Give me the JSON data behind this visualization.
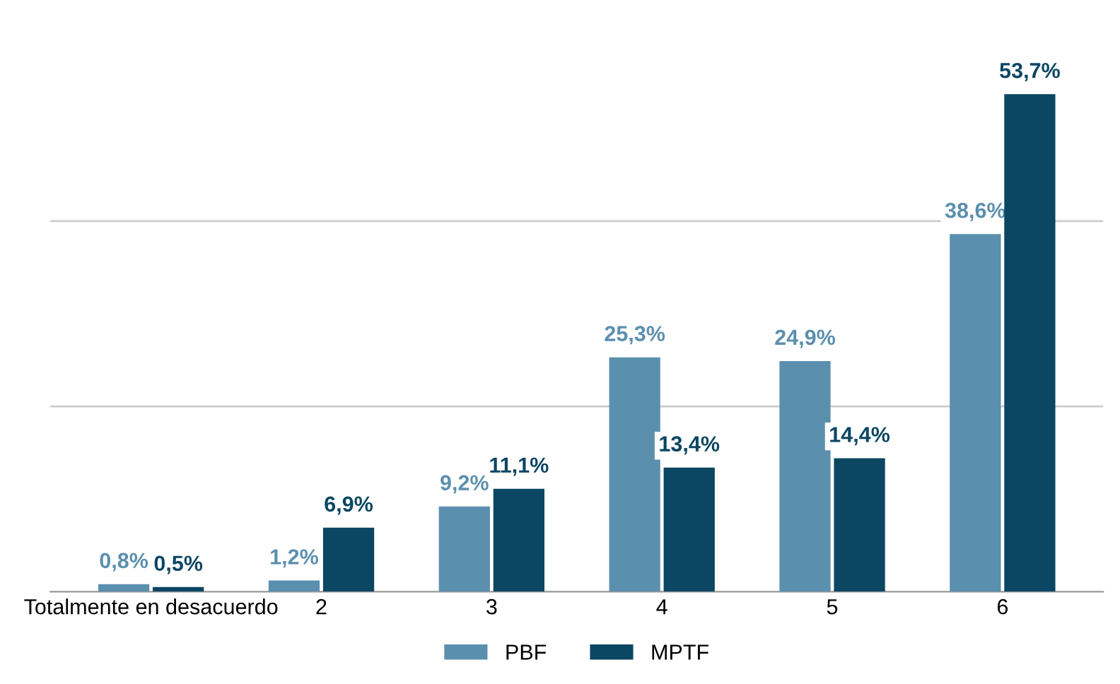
{
  "chart_data": {
    "type": "bar",
    "categories": [
      "Totalmente en desacuerdo",
      "2",
      "3",
      "4",
      "5",
      "6"
    ],
    "series": [
      {
        "name": "PBF",
        "color": "#5b8fae",
        "values": [
          0.8,
          1.2,
          9.2,
          25.3,
          24.9,
          38.6
        ],
        "value_labels": [
          "0,8%",
          "1,2%",
          "9,2%",
          "25,3%",
          "24,9%",
          "38,6%"
        ]
      },
      {
        "name": "MPTF",
        "color": "#0b4662",
        "values": [
          0.5,
          6.9,
          11.1,
          13.4,
          14.4,
          53.7
        ],
        "value_labels": [
          "0,5%",
          "6,9%",
          "11,1%",
          "13,4%",
          "14,4%",
          "53,7%"
        ]
      }
    ],
    "ref_lines": [
      {
        "axis": "y",
        "value": 20,
        "color": "#cccccc"
      },
      {
        "axis": "y",
        "value": 40,
        "color": "#cccccc"
      }
    ],
    "legend": "bottom",
    "tick_labels": "x"
  }
}
